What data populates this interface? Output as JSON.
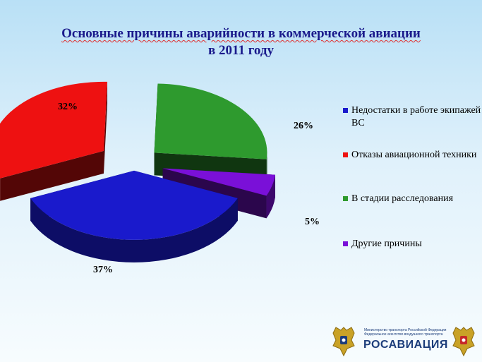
{
  "title": {
    "line1": "Основные причины аварийности в коммерческой авиации",
    "line2": "в 2011 году"
  },
  "chart_data": {
    "type": "pie",
    "style": "3d-exploded",
    "categories": [
      "Недостатки в работе экипажей ВС",
      "Отказы авиационной техники",
      "В стадии расследования",
      "Другие причины"
    ],
    "values": [
      37,
      32,
      26,
      5
    ],
    "labels": [
      "37%",
      "32%",
      "26%",
      "5%"
    ],
    "colors": [
      "#1a1acc",
      "#ee1111",
      "#2e9a2e",
      "#7a10d8"
    ],
    "legend_position": "right"
  },
  "legend": {
    "items": [
      {
        "label": "Недостатки в работе экипажей ВС",
        "color": "#1a1acc"
      },
      {
        "label": "Отказы авиационной техники",
        "color": "#ee1111"
      },
      {
        "label": "В стадии расследования",
        "color": "#2e9a2e"
      },
      {
        "label": "Другие причины",
        "color": "#7a10d8"
      }
    ]
  },
  "logo": {
    "ministry_text": "Министерство транспорта Российской Федерации Федеральное агентство воздушного транспорта",
    "name": "РОСАВИАЦИЯ"
  }
}
